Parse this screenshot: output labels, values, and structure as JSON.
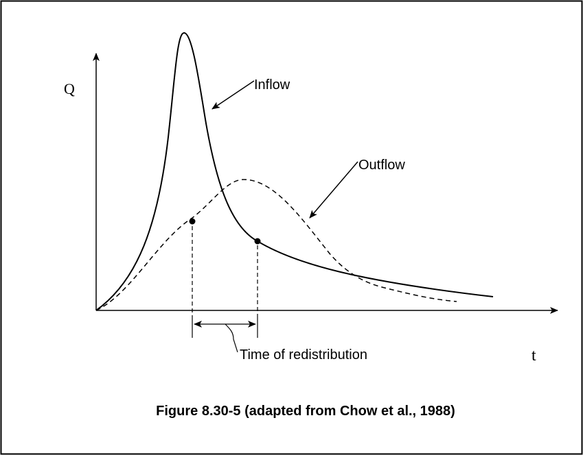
{
  "diagram": {
    "y_axis_label": "Q",
    "x_axis_label": "t",
    "curves": [
      {
        "label": "Inflow"
      },
      {
        "label": "Outflow"
      }
    ],
    "interval_label": "Time of redistribution",
    "caption": "Figure 8.30-5 (adapted from Chow et al., 1988)"
  }
}
